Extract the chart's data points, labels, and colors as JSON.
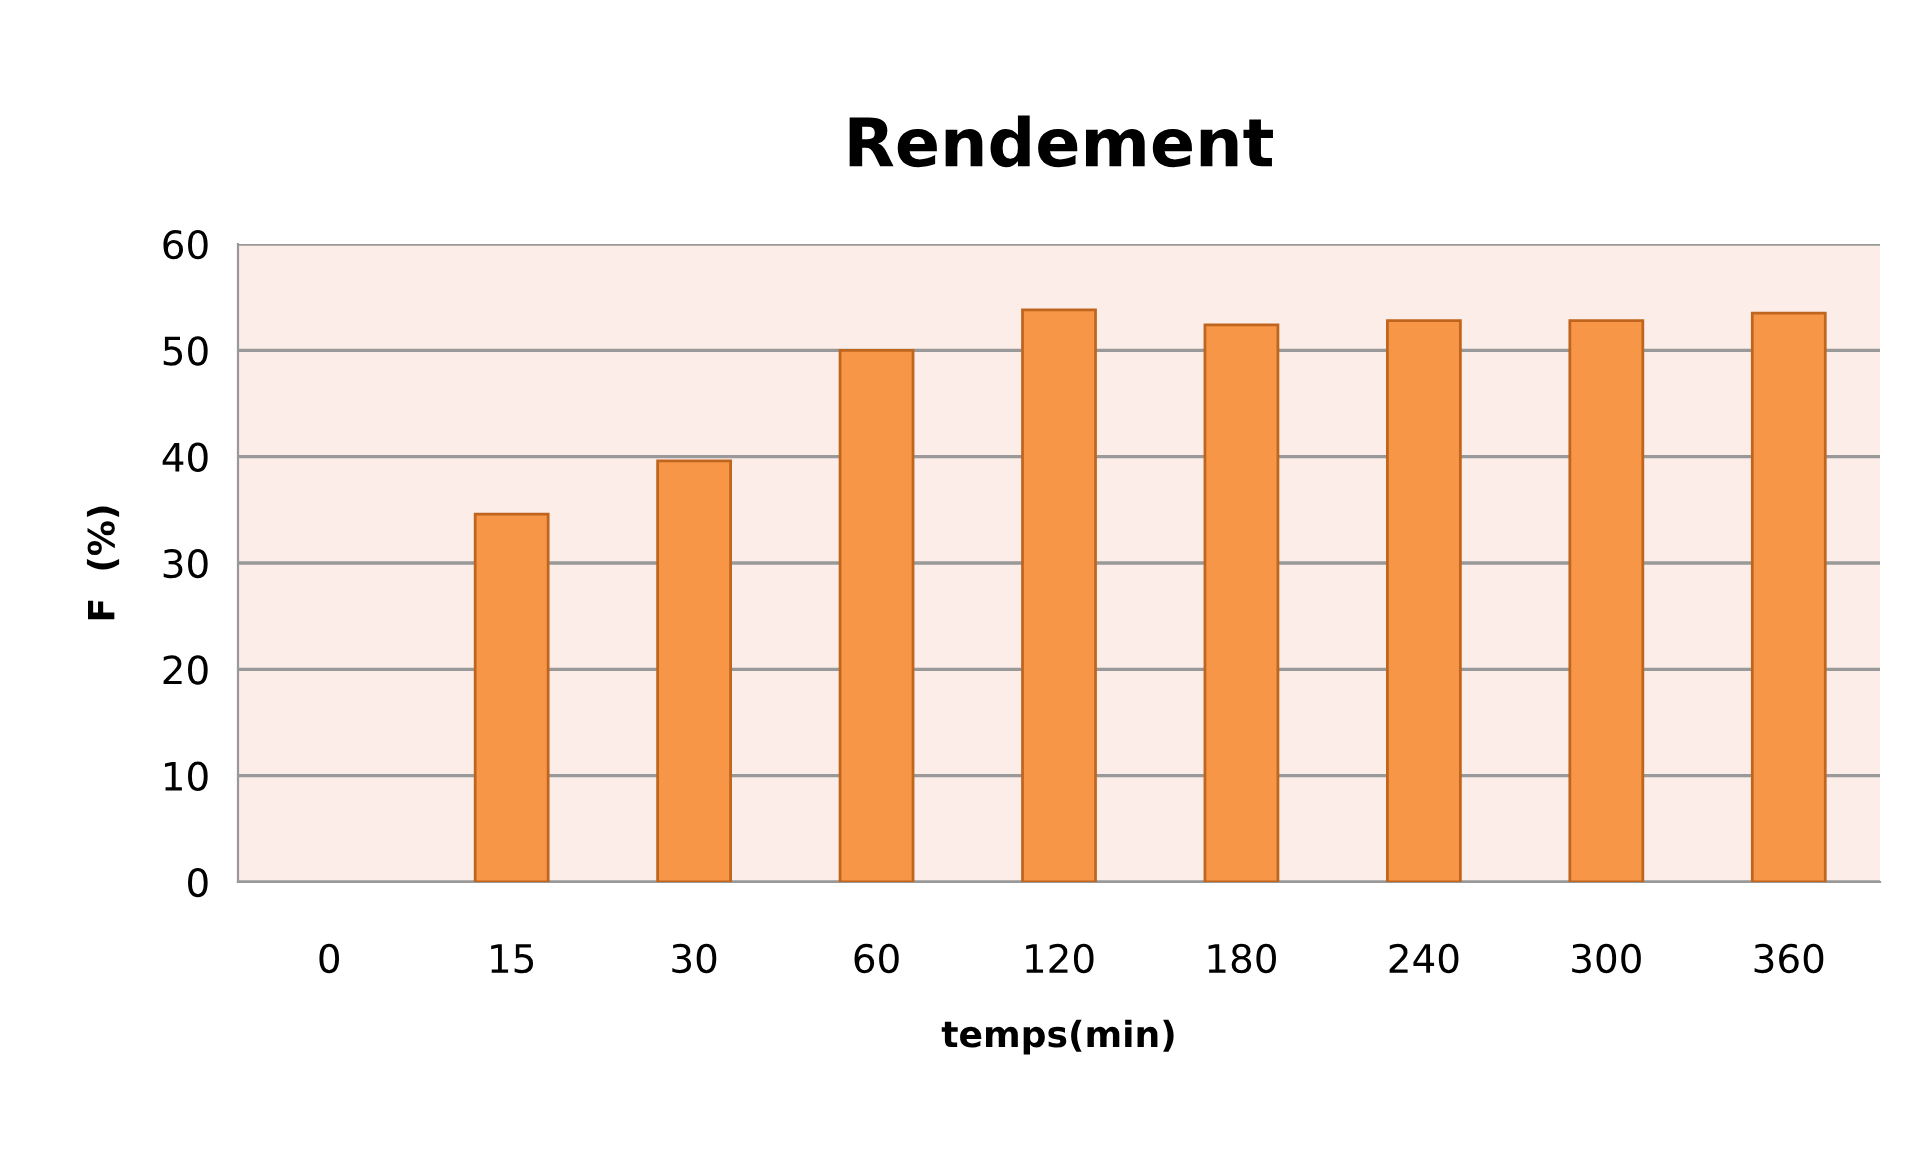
{
  "chart_data": {
    "type": "bar",
    "title": "Rendement",
    "xlabel": "temps(min)",
    "ylabel": "F  (%)",
    "categories": [
      "0",
      "15",
      "30",
      "60",
      "120",
      "180",
      "240",
      "300",
      "360"
    ],
    "values": [
      null,
      34.6,
      39.6,
      50,
      53.8,
      52.4,
      52.8,
      52.8,
      53.5
    ],
    "color": "#f79646",
    "ylim": [
      0,
      60
    ],
    "yticks": [
      0,
      10,
      20,
      30,
      40,
      50,
      60
    ],
    "grid": "y"
  }
}
